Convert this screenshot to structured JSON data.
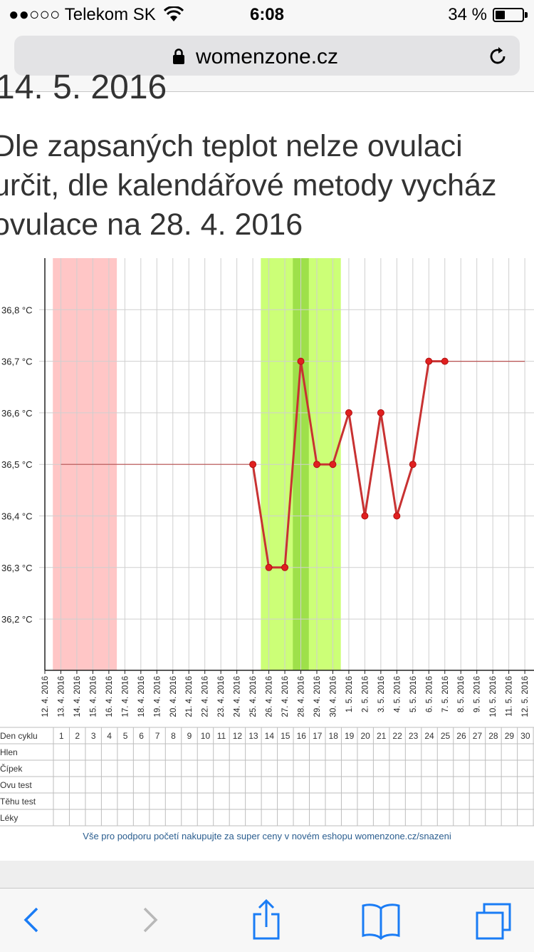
{
  "status_bar": {
    "carrier": "●●○○○ Telekom SK",
    "time": "6:08",
    "battery": "34 %"
  },
  "browser": {
    "domain": "womenzone.cz"
  },
  "page": {
    "date_heading": "14. 5. 2016",
    "message_lines": [
      "Dle zapsaných teplot nelze ovulaci",
      "určit, dle kalendářové metody vycház",
      "ovulace na 28. 4. 2016"
    ],
    "promo_link": "Vše pro podporu početí nakupujte za super ceny v novém eshopu womenzone.cz/snazeni"
  },
  "chart_data": {
    "type": "line",
    "y_labels": [
      "36,8 °C",
      "36,7 °C",
      "36,6 °C",
      "36,5 °C",
      "36,4 °C",
      "36,3 °C",
      "36,2 °C"
    ],
    "ylim": [
      36.1,
      36.9
    ],
    "dates": [
      "12. 4. 2016",
      "13. 4. 2016",
      "14. 4. 2016",
      "15. 4. 2016",
      "16. 4. 2016",
      "17. 4. 2016",
      "18. 4. 2016",
      "19. 4. 2016",
      "20. 4. 2016",
      "21. 4. 2016",
      "22. 4. 2016",
      "23. 4. 2016",
      "24. 4. 2016",
      "25. 4. 2016",
      "26. 4. 2016",
      "27. 4. 2016",
      "28. 4. 2016",
      "29. 4. 2016",
      "30. 4. 2016",
      "1. 5. 2016",
      "2. 5. 2016",
      "3. 5. 2016",
      "4. 5. 2016",
      "5. 5. 2016",
      "6. 5. 2016",
      "7. 5. 2016",
      "8. 5. 2016",
      "9. 5. 2016",
      "10. 5. 2016",
      "11. 5. 2016",
      "12. 5. 2016"
    ],
    "cycle_days": [
      "1",
      "2",
      "3",
      "4",
      "5",
      "6",
      "7",
      "8",
      "9",
      "10",
      "11",
      "12",
      "13",
      "14",
      "15",
      "16",
      "17",
      "18",
      "19",
      "20",
      "21",
      "22",
      "23",
      "24",
      "25",
      "26",
      "27",
      "28",
      "29",
      "30"
    ],
    "temperatures": [
      {
        "date": "25. 4. 2016",
        "value": 36.5
      },
      {
        "date": "26. 4. 2016",
        "value": 36.3
      },
      {
        "date": "27. 4. 2016",
        "value": 36.3
      },
      {
        "date": "28. 4. 2016",
        "value": 36.7
      },
      {
        "date": "29. 4. 2016",
        "value": 36.5
      },
      {
        "date": "30. 4. 2016",
        "value": 36.5
      },
      {
        "date": "1. 5. 2016",
        "value": 36.6
      },
      {
        "date": "2. 5. 2016",
        "value": 36.4
      },
      {
        "date": "3. 5. 2016",
        "value": 36.6
      },
      {
        "date": "4. 5. 2016",
        "value": 36.4
      },
      {
        "date": "5. 5. 2016",
        "value": 36.5
      },
      {
        "date": "6. 5. 2016",
        "value": 36.7
      },
      {
        "date": "7. 5. 2016",
        "value": 36.7
      }
    ],
    "baseline_before": {
      "from": "13. 4. 2016",
      "to": "25. 4. 2016",
      "value": 36.5
    },
    "baseline_after": {
      "from": "7. 5. 2016",
      "to": "12. 5. 2016",
      "value": 36.7
    },
    "menstruation_band": {
      "from": "13. 4. 2016",
      "to": "16. 4. 2016",
      "color": "#ffc6c6"
    },
    "fertile_band": {
      "from": "26. 4. 2016",
      "to": "30. 4. 2016",
      "color": "#ccff77"
    },
    "ovulation_band": {
      "from": "28. 4. 2016",
      "to": "28. 4. 2016",
      "color": "#9ee04a"
    },
    "line_color": "#c83232",
    "row_labels": [
      "Den cyklu",
      "Hlen",
      "Čípek",
      "Ovu test",
      "Těhu test",
      "Léky"
    ]
  }
}
